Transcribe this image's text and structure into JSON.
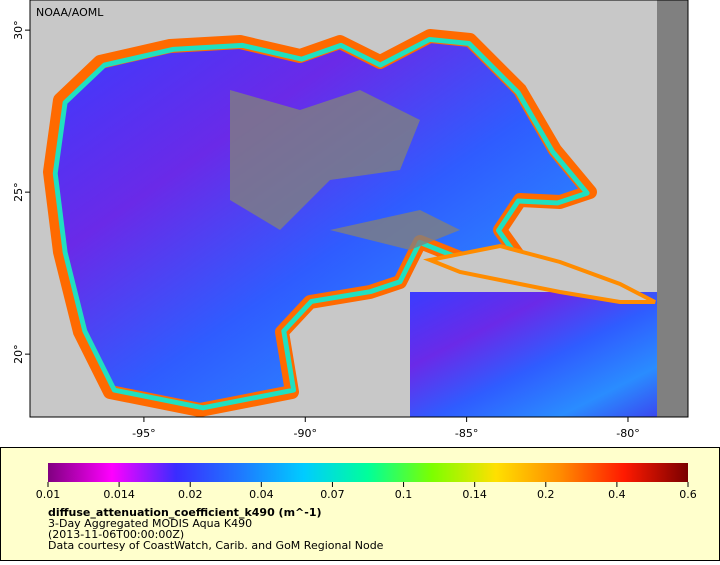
{
  "map": {
    "credit": "NOAA/AOML",
    "xlim": [
      -98.53,
      -78.14
    ],
    "ylim": [
      18.06,
      30.93
    ],
    "xticks": [
      {
        "value": -95,
        "label": "-95°"
      },
      {
        "value": -90,
        "label": "-90°"
      },
      {
        "value": -85,
        "label": "-85°"
      },
      {
        "value": -80,
        "label": "-80°"
      }
    ],
    "yticks": [
      {
        "value": 20,
        "label": "20°"
      },
      {
        "value": 25,
        "label": "25°"
      },
      {
        "value": 30,
        "label": "30°"
      }
    ]
  },
  "colorbar": {
    "ticks": [
      0.01,
      0.014,
      0.02,
      0.04,
      0.07,
      0.1,
      0.14,
      0.2,
      0.4,
      0.6
    ],
    "colors": [
      "#800080",
      "#ff00ff",
      "#3a2cff",
      "#1f78ff",
      "#00ccff",
      "#00ff9a",
      "#7cff00",
      "#ffe000",
      "#ff8c00",
      "#ff1a00",
      "#7a0000"
    ]
  },
  "legend": {
    "variable": "diffuse_attenuation_coefficient_k490 (m^-1)",
    "lines": [
      "3-Day Aggregated MODIS Aqua K490",
      "(2013-11-06T00:00:00Z)",
      "Data courtesy of CoastWatch, Carib. and GoM Regional Node"
    ]
  }
}
